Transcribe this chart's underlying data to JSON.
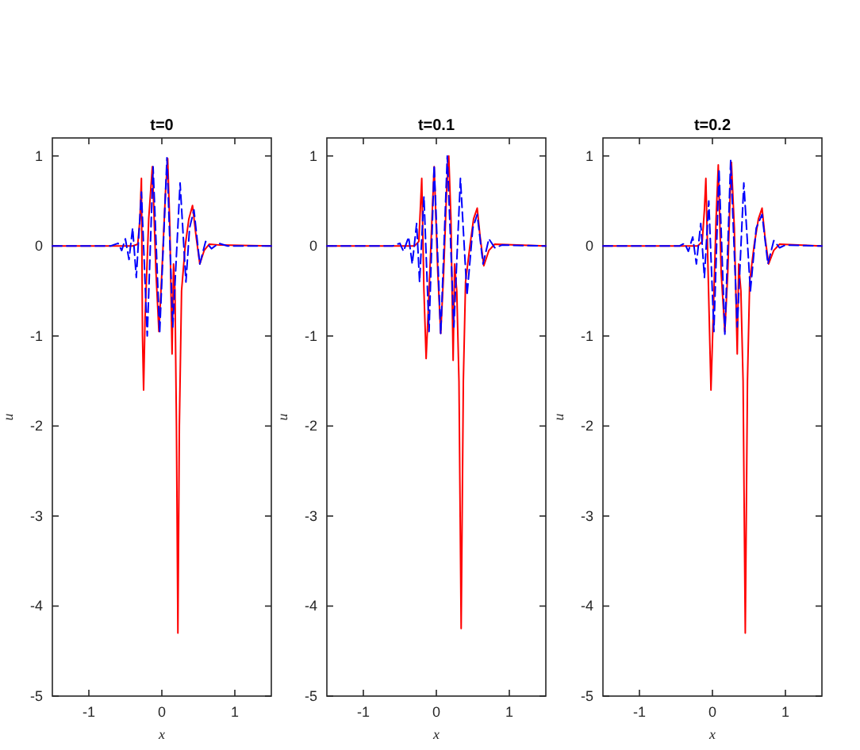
{
  "chart_data": [
    {
      "type": "line",
      "title": "t=0",
      "xlabel": "x",
      "ylabel": "u",
      "xlim": [
        -1.5,
        1.5
      ],
      "ylim": [
        -5,
        1.2
      ],
      "xticks": [
        -1,
        0,
        1
      ],
      "yticks": [
        -5,
        -4,
        -3,
        -2,
        -1,
        0,
        1
      ],
      "series": [
        {
          "color": "#ff0000",
          "line_style": "solid",
          "x": [
            -1.5,
            -0.4,
            -0.33,
            -0.3,
            -0.28,
            -0.265,
            -0.25,
            -0.23,
            -0.18,
            -0.13,
            -0.08,
            -0.04,
            0.0,
            0.05,
            0.08,
            0.11,
            0.14,
            0.16,
            0.18,
            0.2,
            0.22,
            0.24,
            0.27,
            0.32,
            0.37,
            0.42,
            0.47,
            0.52,
            0.58,
            0.65,
            0.8,
            1.5
          ],
          "values": [
            0,
            0,
            0.02,
            0.3,
            0.75,
            -1.0,
            -1.6,
            -0.8,
            0.3,
            0.88,
            -0.3,
            -0.95,
            -0.3,
            0.6,
            0.97,
            0.2,
            -1.2,
            -0.2,
            -0.5,
            -2.0,
            -4.3,
            -2.0,
            -0.5,
            0.0,
            0.3,
            0.45,
            0.1,
            -0.2,
            -0.05,
            0.02,
            0.01,
            0
          ]
        },
        {
          "color": "#0000ff",
          "line_style": "dashed",
          "x": [
            -1.5,
            -0.7,
            -0.6,
            -0.55,
            -0.5,
            -0.45,
            -0.4,
            -0.35,
            -0.28,
            -0.2,
            -0.12,
            -0.03,
            0.07,
            0.15,
            0.25,
            0.33,
            0.38,
            0.44,
            0.52,
            0.6,
            0.68,
            0.78,
            0.9,
            1.5
          ],
          "values": [
            0,
            0,
            0.03,
            -0.05,
            0.08,
            -0.15,
            0.2,
            -0.35,
            0.6,
            -1.0,
            0.88,
            -0.97,
            0.98,
            -0.9,
            0.7,
            -0.4,
            0.2,
            0.4,
            -0.2,
            0.05,
            -0.03,
            0.03,
            0,
            0
          ]
        }
      ]
    },
    {
      "type": "line",
      "title": "t=0.1",
      "xlabel": "x",
      "ylabel": "u",
      "xlim": [
        -1.5,
        1.5
      ],
      "ylim": [
        -5,
        1.2
      ],
      "xticks": [
        -1,
        0,
        1
      ],
      "yticks": [
        -5,
        -4,
        -3,
        -2,
        -1,
        0,
        1
      ],
      "series": [
        {
          "color": "#ff0000",
          "line_style": "solid",
          "x": [
            -1.5,
            -0.3,
            -0.24,
            -0.22,
            -0.2,
            -0.17,
            -0.14,
            -0.11,
            -0.06,
            -0.03,
            0.02,
            0.06,
            0.1,
            0.14,
            0.17,
            0.2,
            0.23,
            0.25,
            0.28,
            0.31,
            0.34,
            0.37,
            0.4,
            0.46,
            0.51,
            0.56,
            0.6,
            0.65,
            0.72,
            0.8,
            1.5
          ],
          "values": [
            0,
            0,
            0.05,
            0.4,
            0.75,
            -0.5,
            -1.25,
            -0.7,
            0.3,
            0.88,
            -0.3,
            -0.97,
            -0.3,
            0.6,
            1.0,
            0.3,
            -1.27,
            -0.2,
            -0.5,
            -1.5,
            -4.25,
            -1.5,
            -0.4,
            0.0,
            0.3,
            0.42,
            0.1,
            -0.22,
            -0.05,
            0.02,
            0
          ]
        },
        {
          "color": "#0000ff",
          "line_style": "dashed",
          "x": [
            -1.5,
            -0.6,
            -0.5,
            -0.45,
            -0.38,
            -0.33,
            -0.27,
            -0.23,
            -0.17,
            -0.1,
            -0.03,
            0.06,
            0.15,
            0.24,
            0.33,
            0.42,
            0.5,
            0.56,
            0.64,
            0.72,
            0.8,
            0.9,
            1.5
          ],
          "values": [
            0,
            0,
            0.03,
            -0.06,
            0.1,
            -0.2,
            0.25,
            -0.4,
            0.55,
            -0.95,
            0.9,
            -0.98,
            1.0,
            -0.9,
            0.75,
            -0.55,
            0.2,
            0.35,
            -0.2,
            0.08,
            -0.02,
            0.01,
            0
          ]
        }
      ]
    },
    {
      "type": "line",
      "title": "t=0.2",
      "xlabel": "x",
      "ylabel": "u",
      "xlim": [
        -1.5,
        1.5
      ],
      "ylim": [
        -5,
        1.2
      ],
      "xticks": [
        -1,
        0,
        1
      ],
      "yticks": [
        -5,
        -4,
        -3,
        -2,
        -1,
        0,
        1
      ],
      "series": [
        {
          "color": "#ff0000",
          "line_style": "solid",
          "x": [
            -1.5,
            -0.2,
            -0.14,
            -0.11,
            -0.09,
            -0.05,
            -0.02,
            0.01,
            0.05,
            0.08,
            0.12,
            0.17,
            0.21,
            0.24,
            0.26,
            0.3,
            0.34,
            0.36,
            0.39,
            0.42,
            0.45,
            0.48,
            0.51,
            0.57,
            0.63,
            0.68,
            0.72,
            0.77,
            0.84,
            0.92,
            1.5
          ],
          "values": [
            0,
            0,
            0.05,
            0.4,
            0.75,
            -0.6,
            -1.6,
            -0.8,
            0.3,
            0.9,
            -0.3,
            -0.95,
            -0.3,
            0.5,
            0.93,
            0.2,
            -1.2,
            -0.2,
            -0.5,
            -1.5,
            -4.3,
            -1.5,
            -0.4,
            0.0,
            0.3,
            0.42,
            0.1,
            -0.2,
            -0.05,
            0.02,
            0
          ]
        },
        {
          "color": "#0000ff",
          "line_style": "dashed",
          "x": [
            -1.5,
            -0.45,
            -0.38,
            -0.33,
            -0.27,
            -0.22,
            -0.16,
            -0.11,
            -0.05,
            0.02,
            0.09,
            0.17,
            0.25,
            0.34,
            0.43,
            0.52,
            0.6,
            0.68,
            0.76,
            0.84,
            0.92,
            1.0,
            1.5
          ],
          "values": [
            0,
            0,
            0.03,
            -0.06,
            0.1,
            -0.2,
            0.25,
            -0.35,
            0.5,
            -0.95,
            0.85,
            -0.98,
            0.95,
            -0.9,
            0.7,
            -0.5,
            0.2,
            0.35,
            -0.2,
            0.06,
            -0.02,
            0.01,
            0
          ]
        }
      ]
    }
  ]
}
